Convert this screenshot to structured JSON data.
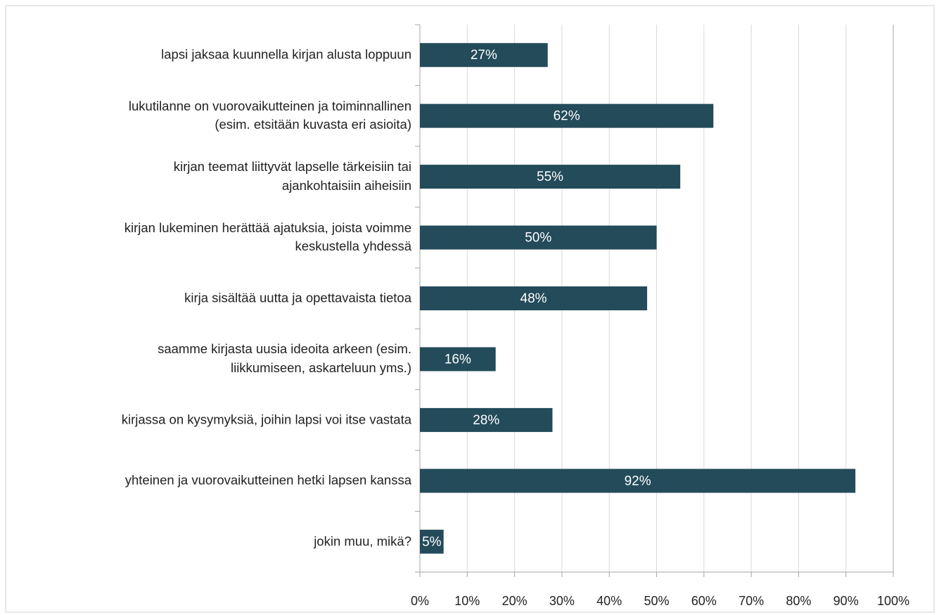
{
  "chart_data": {
    "type": "bar",
    "orientation": "horizontal",
    "categories": [
      "lapsi jaksaa kuunnella kirjan alusta loppuun",
      "lukutilanne on vuorovaikutteinen ja toiminnallinen\n(esim. etsitään kuvasta eri asioita)",
      "kirjan teemat liittyvät lapselle tärkeisiin tai\najankohtaisiin aiheisiin",
      "kirjan lukeminen herättää ajatuksia, joista voimme\nkeskustella yhdessä",
      "kirja sisältää uutta ja opettavaista tietoa",
      "saamme kirjasta uusia ideoita arkeen (esim.\nliikkumiseen, askarteluun yms.)",
      "kirjassa on kysymyksiä, joihin lapsi voi itse vastata",
      "yhteinen ja vuorovaikutteinen hetki lapsen kanssa",
      "jokin muu, mikä?"
    ],
    "values": [
      27,
      62,
      55,
      50,
      48,
      16,
      28,
      92,
      5
    ],
    "value_labels": [
      "27%",
      "62%",
      "55%",
      "50%",
      "48%",
      "16%",
      "28%",
      "92%",
      "5%"
    ],
    "color": "#234b5a",
    "xlim": [
      0,
      100
    ],
    "xticks": [
      {
        "value": 0,
        "label": "0%"
      },
      {
        "value": 10,
        "label": "10%"
      },
      {
        "value": 20,
        "label": "20%"
      },
      {
        "value": 30,
        "label": "30%"
      },
      {
        "value": 40,
        "label": "40%"
      },
      {
        "value": 50,
        "label": "50%"
      },
      {
        "value": 60,
        "label": "60%"
      },
      {
        "value": 70,
        "label": "70%"
      },
      {
        "value": 80,
        "label": "80%"
      },
      {
        "value": 90,
        "label": "90%"
      },
      {
        "value": 100,
        "label": "100%"
      }
    ],
    "grid": true
  }
}
